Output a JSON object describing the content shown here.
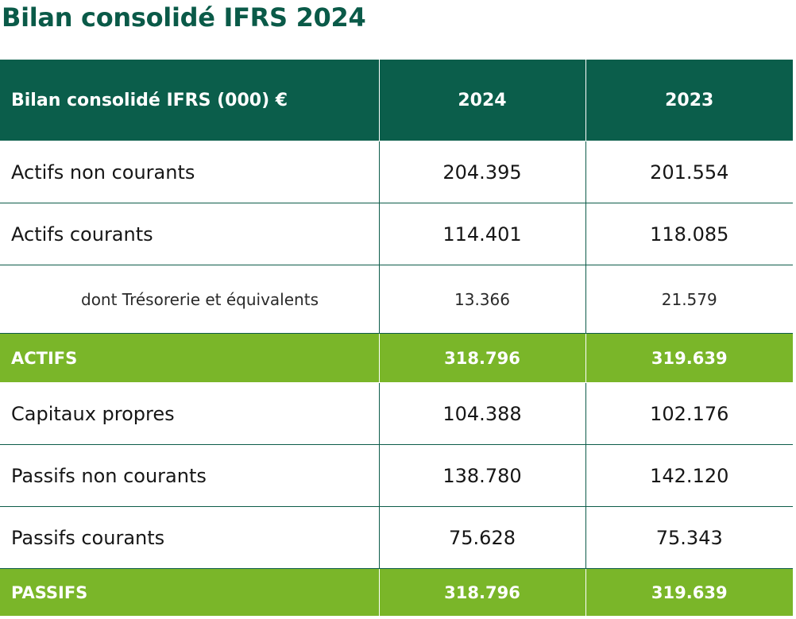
{
  "page": {
    "title": "Bilan consolidé IFRS 2024"
  },
  "table": {
    "headers": [
      "Bilan consolidé IFRS (000) €",
      "2024",
      "2023"
    ],
    "rows": [
      {
        "label": "Actifs non courants",
        "v2024": "204.395",
        "v2023": "201.554"
      },
      {
        "label": "Actifs courants",
        "v2024": "114.401",
        "v2023": "118.085"
      },
      {
        "label": "dont Trésorerie et équivalents",
        "v2024": "13.366",
        "v2023": "21.579"
      },
      {
        "label": "ACTIFS",
        "v2024": "318.796",
        "v2023": "319.639"
      },
      {
        "label": "Capitaux propres",
        "v2024": "104.388",
        "v2023": "102.176"
      },
      {
        "label": "Passifs non courants",
        "v2024": "138.780",
        "v2023": "142.120"
      },
      {
        "label": "Passifs courants",
        "v2024": "75.628",
        "v2023": "75.343"
      },
      {
        "label": "PASSIFS",
        "v2024": "318.796",
        "v2023": "319.639"
      }
    ]
  },
  "colors": {
    "header_bg": "#0b5e4b",
    "title": "#0a5a48",
    "total_bg": "#7ab629"
  }
}
